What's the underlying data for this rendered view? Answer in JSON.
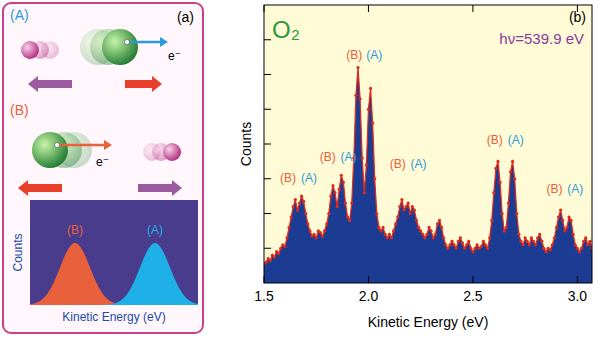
{
  "panel_a": {
    "label": "(a)",
    "states": [
      {
        "label": "(A)",
        "electron": "e⁻",
        "color": "#2a9ad8"
      },
      {
        "label": "(B)",
        "electron": "e⁻",
        "color": "#e8603c"
      }
    ],
    "inset": {
      "labels": [
        "(B)",
        "(A)"
      ],
      "y_label": "Counts",
      "x_label": "Kinetic Energy (eV)"
    }
  },
  "chart_data": {
    "type": "area",
    "label": "(b)",
    "title": "O₂",
    "subtitle": "hν=539.9 eV",
    "x_label": "Kinetic Energy (eV)",
    "y_label": "Counts",
    "color": "#1c3c94",
    "marker": "circle",
    "xlim": [
      1.5,
      3.07
    ],
    "ylim": [
      0,
      8
    ],
    "xticks": [
      1.5,
      {
        "value": 2,
        "label": "2.0"
      },
      2.5,
      {
        "value": 3,
        "label": "3.0"
      }
    ],
    "yticks": [
      1,
      2,
      3,
      4,
      5,
      6,
      7
    ],
    "tick_labels": "x",
    "x": [
      1.5,
      1.51,
      1.52,
      1.53,
      1.54,
      1.55,
      1.56,
      1.57,
      1.58,
      1.59,
      1.6,
      1.61,
      1.62,
      1.63,
      1.64,
      1.65,
      1.66,
      1.67,
      1.68,
      1.69,
      1.7,
      1.71,
      1.72,
      1.73,
      1.74,
      1.75,
      1.76,
      1.77,
      1.78,
      1.79,
      1.8,
      1.81,
      1.82,
      1.83,
      1.84,
      1.85,
      1.86,
      1.87,
      1.88,
      1.89,
      1.9,
      1.91,
      1.92,
      1.93,
      1.94,
      1.95,
      1.96,
      1.97,
      1.98,
      1.99,
      2.0,
      2.01,
      2.02,
      2.03,
      2.04,
      2.05,
      2.06,
      2.07,
      2.08,
      2.09,
      2.1,
      2.11,
      2.12,
      2.13,
      2.14,
      2.15,
      2.16,
      2.17,
      2.18,
      2.19,
      2.2,
      2.21,
      2.22,
      2.23,
      2.24,
      2.25,
      2.26,
      2.27,
      2.28,
      2.29,
      2.3,
      2.31,
      2.32,
      2.33,
      2.34,
      2.35,
      2.36,
      2.37,
      2.38,
      2.39,
      2.4,
      2.41,
      2.42,
      2.43,
      2.44,
      2.45,
      2.46,
      2.47,
      2.48,
      2.49,
      2.5,
      2.51,
      2.52,
      2.53,
      2.54,
      2.55,
      2.56,
      2.57,
      2.58,
      2.59,
      2.6,
      2.61,
      2.62,
      2.63,
      2.64,
      2.65,
      2.66,
      2.67,
      2.68,
      2.69,
      2.7,
      2.71,
      2.72,
      2.73,
      2.74,
      2.75,
      2.76,
      2.77,
      2.78,
      2.79,
      2.8,
      2.81,
      2.82,
      2.83,
      2.84,
      2.85,
      2.86,
      2.87,
      2.88,
      2.89,
      2.9,
      2.91,
      2.92,
      2.93,
      2.94,
      2.95,
      2.96,
      2.97,
      2.98,
      2.99,
      3.0,
      3.01,
      3.02,
      3.03,
      3.04,
      3.05,
      3.06,
      3.07
    ],
    "values": [
      0.55,
      0.6,
      0.7,
      0.65,
      0.8,
      0.75,
      0.9,
      0.85,
      1.0,
      1.1,
      1.05,
      1.3,
      1.6,
      1.9,
      2.2,
      2.4,
      2.1,
      2.3,
      2.5,
      2.35,
      2.0,
      1.7,
      1.5,
      1.35,
      1.4,
      1.3,
      1.5,
      1.45,
      1.35,
      1.5,
      1.7,
      2.0,
      2.5,
      2.8,
      2.6,
      2.2,
      2.7,
      3.1,
      2.9,
      2.3,
      1.9,
      1.8,
      2.3,
      3.6,
      5.4,
      6.2,
      5.3,
      3.6,
      2.6,
      3.4,
      5.0,
      5.6,
      4.6,
      3.0,
      2.0,
      1.6,
      1.5,
      1.6,
      1.4,
      1.3,
      1.4,
      1.3,
      1.5,
      1.7,
      1.9,
      2.2,
      2.4,
      2.1,
      2.2,
      2.3,
      2.0,
      2.2,
      2.1,
      1.8,
      1.6,
      1.5,
      1.4,
      1.3,
      1.4,
      1.6,
      1.5,
      1.3,
      1.4,
      1.7,
      1.8,
      1.6,
      1.3,
      1.1,
      1.0,
      1.1,
      1.2,
      1.1,
      1.0,
      1.2,
      1.3,
      1.15,
      1.0,
      1.1,
      1.2,
      1.0,
      0.9,
      1.0,
      1.1,
      1.0,
      1.05,
      1.2,
      1.1,
      1.0,
      1.3,
      1.8,
      2.6,
      3.3,
      3.5,
      2.9,
      2.0,
      1.5,
      1.6,
      2.3,
      3.2,
      3.5,
      3.0,
      2.0,
      1.4,
      1.2,
      1.1,
      1.3,
      1.2,
      1.1,
      1.3,
      1.2,
      1.1,
      1.3,
      1.4,
      1.2,
      1.0,
      0.9,
      1.0,
      0.95,
      1.1,
      1.3,
      1.6,
      1.9,
      2.1,
      1.8,
      1.5,
      1.6,
      1.9,
      1.8,
      1.4,
      1.1,
      1.0,
      0.9,
      1.0,
      1.2,
      1.3,
      1.1,
      1.2,
      1.0
    ],
    "annotations": [
      {
        "text": "(B)",
        "x": 1.615,
        "y": 2.9,
        "color": "#e8603c"
      },
      {
        "text": "(A)",
        "x": 1.715,
        "y": 2.9,
        "color": "#2a9ad8"
      },
      {
        "text": "(B)",
        "x": 1.805,
        "y": 3.5,
        "color": "#e8603c"
      },
      {
        "text": "(A)",
        "x": 1.905,
        "y": 3.5,
        "color": "#2a9ad8"
      },
      {
        "text": "(B)",
        "x": 1.932,
        "y": 6.45,
        "color": "#e8603c"
      },
      {
        "text": "(A)",
        "x": 2.028,
        "y": 6.45,
        "color": "#2a9ad8"
      },
      {
        "text": "(B)",
        "x": 2.14,
        "y": 3.3,
        "color": "#e8603c"
      },
      {
        "text": "(A)",
        "x": 2.24,
        "y": 3.3,
        "color": "#2a9ad8"
      },
      {
        "text": "(B)",
        "x": 2.605,
        "y": 4.0,
        "color": "#e8603c"
      },
      {
        "text": "(A)",
        "x": 2.705,
        "y": 4.0,
        "color": "#2a9ad8"
      },
      {
        "text": "(B)",
        "x": 2.89,
        "y": 2.6,
        "color": "#e8603c"
      },
      {
        "text": "(A)",
        "x": 2.99,
        "y": 2.6,
        "color": "#2a9ad8"
      }
    ]
  }
}
